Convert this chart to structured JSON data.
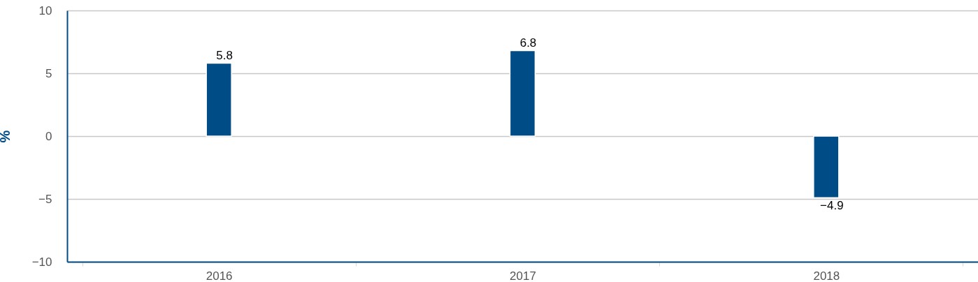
{
  "chart_data": {
    "type": "bar",
    "ylabel": "%",
    "categories": [
      "2016",
      "2017",
      "2018"
    ],
    "values": [
      5.8,
      6.8,
      -4.9
    ],
    "color": "#004c87",
    "ylim": [
      -10,
      10
    ],
    "yticks": [
      -10,
      -5,
      0,
      5,
      10
    ],
    "grid": "y",
    "data_labels": true
  }
}
